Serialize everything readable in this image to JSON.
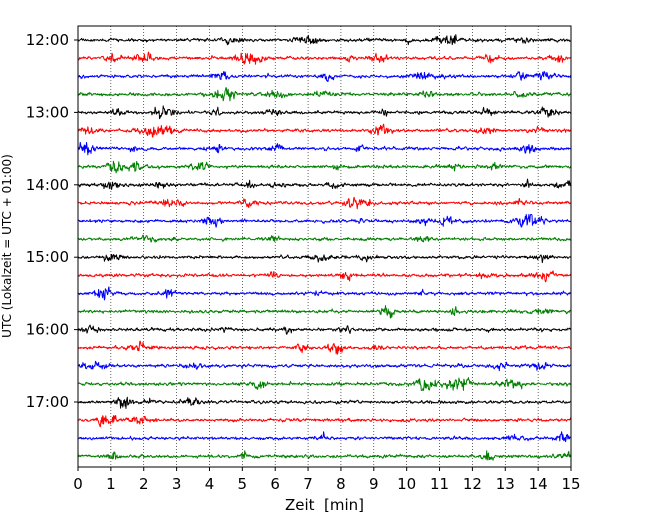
{
  "chart_data": {
    "type": "line",
    "title": "",
    "xlabel": "Zeit  [min]",
    "ylabel": "UTC (Lokalzeit = UTC + 01:00)",
    "xlim": [
      0,
      15
    ],
    "x_ticks": [
      0,
      1,
      2,
      3,
      4,
      5,
      6,
      7,
      8,
      9,
      10,
      11,
      12,
      13,
      14,
      15
    ],
    "x_tick_labels": [
      "0",
      "1",
      "2",
      "3",
      "4",
      "5",
      "6",
      "7",
      "8",
      "9",
      "10",
      "11",
      "12",
      "13",
      "14",
      "15"
    ],
    "y_ticks": [
      "12:00",
      "13:00",
      "14:00",
      "15:00",
      "16:00",
      "17:00"
    ],
    "y_range": [
      "12:00",
      "18:00"
    ],
    "row_interval_minutes": 15,
    "vertical_grid": true,
    "grid_style": "dotted",
    "line_colors": [
      "#000000",
      "#ff0000",
      "#0000ff",
      "#007f00"
    ],
    "series": [
      {
        "start": "12:00",
        "color": "#000000"
      },
      {
        "start": "12:15",
        "color": "#ff0000"
      },
      {
        "start": "12:30",
        "color": "#0000ff"
      },
      {
        "start": "12:45",
        "color": "#007f00"
      },
      {
        "start": "13:00",
        "color": "#000000"
      },
      {
        "start": "13:15",
        "color": "#ff0000"
      },
      {
        "start": "13:30",
        "color": "#0000ff"
      },
      {
        "start": "13:45",
        "color": "#007f00"
      },
      {
        "start": "14:00",
        "color": "#000000"
      },
      {
        "start": "14:15",
        "color": "#ff0000"
      },
      {
        "start": "14:30",
        "color": "#0000ff"
      },
      {
        "start": "14:45",
        "color": "#007f00"
      },
      {
        "start": "15:00",
        "color": "#000000"
      },
      {
        "start": "15:15",
        "color": "#ff0000"
      },
      {
        "start": "15:30",
        "color": "#0000ff"
      },
      {
        "start": "15:45",
        "color": "#007f00"
      },
      {
        "start": "16:00",
        "color": "#000000"
      },
      {
        "start": "16:15",
        "color": "#ff0000"
      },
      {
        "start": "16:30",
        "color": "#0000ff"
      },
      {
        "start": "16:45",
        "color": "#007f00"
      },
      {
        "start": "17:00",
        "color": "#000000"
      },
      {
        "start": "17:15",
        "color": "#ff0000"
      },
      {
        "start": "17:30",
        "color": "#0000ff"
      },
      {
        "start": "17:45",
        "color": "#007f00"
      }
    ]
  }
}
